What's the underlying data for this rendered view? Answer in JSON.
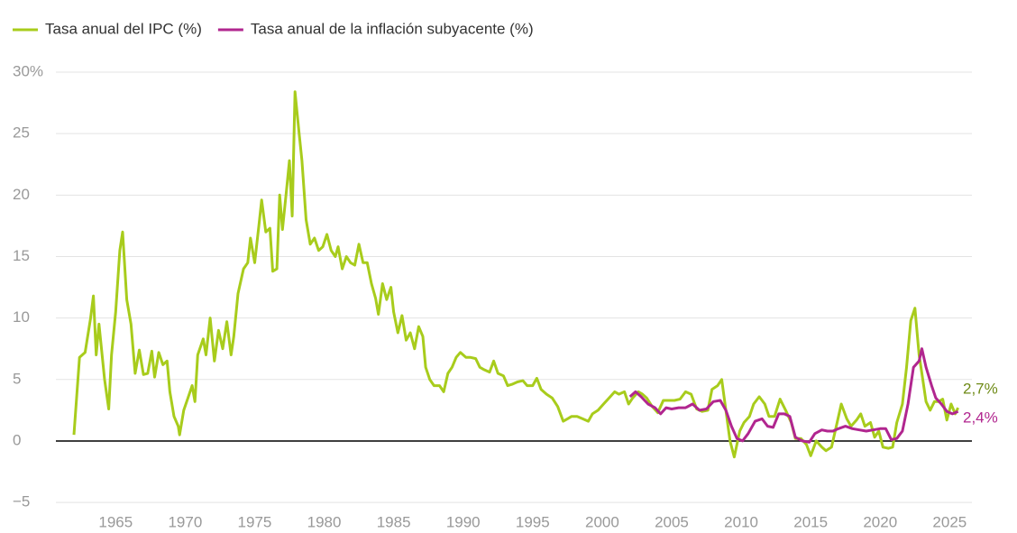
{
  "chart_data": {
    "type": "line",
    "series": [
      {
        "name": "Tasa anual del IPC (%)",
        "color": "#a8cc1c",
        "x": [
          1962.0,
          1962.4,
          1962.8,
          1963.2,
          1963.4,
          1963.6,
          1963.8,
          1964.2,
          1964.5,
          1964.7,
          1965.0,
          1965.3,
          1965.5,
          1965.8,
          1966.1,
          1966.4,
          1966.7,
          1967.0,
          1967.3,
          1967.6,
          1967.8,
          1968.1,
          1968.4,
          1968.7,
          1968.9,
          1969.2,
          1969.5,
          1969.6,
          1969.9,
          1970.2,
          1970.5,
          1970.7,
          1970.9,
          1971.3,
          1971.5,
          1971.8,
          1972.1,
          1972.4,
          1972.7,
          1973.0,
          1973.3,
          1973.5,
          1973.8,
          1974.2,
          1974.5,
          1974.7,
          1975.0,
          1975.3,
          1975.5,
          1975.8,
          1976.1,
          1976.3,
          1976.6,
          1976.8,
          1977.0,
          1977.3,
          1977.5,
          1977.7,
          1977.9,
          1978.2,
          1978.4,
          1978.7,
          1979.0,
          1979.3,
          1979.6,
          1979.9,
          1980.2,
          1980.5,
          1980.8,
          1981.0,
          1981.3,
          1981.6,
          1981.9,
          1982.2,
          1982.5,
          1982.8,
          1983.1,
          1983.4,
          1983.7,
          1983.9,
          1984.2,
          1984.5,
          1984.8,
          1985.0,
          1985.3,
          1985.6,
          1985.9,
          1986.2,
          1986.5,
          1986.8,
          1987.1,
          1987.3,
          1987.6,
          1987.9,
          1988.3,
          1988.6,
          1988.9,
          1989.2,
          1989.5,
          1989.8,
          1990.2,
          1990.5,
          1990.9,
          1991.2,
          1991.5,
          1991.9,
          1992.2,
          1992.5,
          1992.9,
          1993.2,
          1993.5,
          1993.9,
          1994.3,
          1994.6,
          1995.0,
          1995.3,
          1995.6,
          1996.0,
          1996.4,
          1996.8,
          1997.2,
          1997.5,
          1997.8,
          1998.2,
          1998.6,
          1999.0,
          1999.3,
          1999.7,
          2000.1,
          2000.5,
          2000.9,
          2001.2,
          2001.6,
          2001.9,
          2002.2,
          2002.6,
          2002.9,
          2003.2,
          2003.6,
          2004.0,
          2004.4,
          2004.8,
          2005.2,
          2005.6,
          2006.0,
          2006.4,
          2006.8,
          2007.2,
          2007.6,
          2007.9,
          2008.3,
          2008.6,
          2008.9,
          2009.2,
          2009.5,
          2009.9,
          2010.2,
          2010.6,
          2010.9,
          2011.3,
          2011.7,
          2012.0,
          2012.4,
          2012.8,
          2013.2,
          2013.6,
          2013.9,
          2014.3,
          2014.7,
          2015.0,
          2015.4,
          2015.8,
          2016.1,
          2016.5,
          2016.9,
          2017.2,
          2017.6,
          2017.9,
          2018.3,
          2018.6,
          2018.9,
          2019.3,
          2019.6,
          2019.9,
          2020.2,
          2020.6,
          2020.9,
          2021.2,
          2021.6,
          2021.9,
          2022.2,
          2022.5,
          2022.8,
          2023.0,
          2023.3,
          2023.6,
          2023.9,
          2024.2,
          2024.5,
          2024.8,
          2025.1,
          2025.4,
          2025.6
        ],
        "values": [
          0.5,
          6.8,
          7.2,
          10,
          11.8,
          7,
          9.5,
          5,
          2.6,
          7,
          10.5,
          15.5,
          17,
          11.5,
          9.5,
          5.5,
          7.4,
          5.4,
          5.5,
          7.3,
          5.2,
          7.2,
          6.2,
          6.5,
          4,
          2,
          1.2,
          0.5,
          2.5,
          3.5,
          4.5,
          3.2,
          7,
          8.3,
          7,
          10,
          6.5,
          9,
          7.5,
          9.7,
          7,
          8.5,
          12,
          14,
          14.5,
          16.5,
          14.5,
          17.5,
          19.6,
          17,
          17.3,
          13.8,
          14,
          20,
          17.2,
          20.5,
          22.8,
          18.3,
          28.4,
          25,
          22.8,
          18,
          16,
          16.5,
          15.5,
          15.8,
          16.8,
          15.5,
          15,
          15.8,
          14,
          15,
          14.5,
          14.3,
          16,
          14.5,
          14.5,
          12.8,
          11.6,
          10.3,
          12.8,
          11.5,
          12.5,
          10.5,
          8.8,
          10.2,
          8.2,
          8.8,
          7.5,
          9.3,
          8.5,
          6,
          5,
          4.5,
          4.5,
          4,
          5.5,
          6,
          6.8,
          7.2,
          6.8,
          6.8,
          6.7,
          6,
          5.8,
          5.6,
          6.5,
          5.5,
          5.3,
          4.5,
          4.6,
          4.8,
          4.9,
          4.5,
          4.5,
          5.1,
          4.2,
          3.8,
          3.5,
          2.8,
          1.6,
          1.8,
          2,
          2,
          1.8,
          1.6,
          2.2,
          2.5,
          3,
          3.5,
          4,
          3.8,
          4,
          3,
          3.5,
          4,
          3.8,
          3.5,
          2.8,
          2.3,
          3.3,
          3.3,
          3.3,
          3.4,
          4,
          3.8,
          2.6,
          2.4,
          2.5,
          4.2,
          4.5,
          5,
          2.5,
          0,
          -1.3,
          0.8,
          1.5,
          2,
          3,
          3.6,
          3,
          2,
          2,
          3.4,
          2.5,
          1.5,
          0.2,
          0.2,
          -0.3,
          -1.2,
          0,
          -0.5,
          -0.8,
          -0.5,
          1.5,
          3,
          1.8,
          1.2,
          1.7,
          2.2,
          1.2,
          1.5,
          0.3,
          0.8,
          -0.5,
          -0.6,
          -0.5,
          1.5,
          3,
          6,
          9.8,
          10.8,
          7,
          5.5,
          3.2,
          2.5,
          3.2,
          3.2,
          3.4,
          1.7,
          3,
          2.2,
          2.7
        ]
      },
      {
        "name": "Tasa anual de la inflación subyacente (%)",
        "color": "#b1268f",
        "x": [
          2002.0,
          2002.4,
          2002.8,
          2003.3,
          2003.8,
          2004.2,
          2004.6,
          2005.0,
          2005.5,
          2006.0,
          2006.5,
          2007.0,
          2007.5,
          2008.0,
          2008.5,
          2008.9,
          2009.3,
          2009.7,
          2010.1,
          2010.5,
          2011.0,
          2011.5,
          2011.9,
          2012.3,
          2012.7,
          2013.1,
          2013.5,
          2013.9,
          2014.4,
          2014.9,
          2015.3,
          2015.8,
          2016.2,
          2016.6,
          2017.0,
          2017.5,
          2018.0,
          2018.5,
          2019.0,
          2019.5,
          2020.0,
          2020.4,
          2020.8,
          2021.2,
          2021.6,
          2022.0,
          2022.4,
          2022.8,
          2023.0,
          2023.3,
          2023.7,
          2024.0,
          2024.4,
          2024.8,
          2025.2,
          2025.6
        ],
        "values": [
          3.6,
          4,
          3.6,
          3,
          2.7,
          2.2,
          2.7,
          2.6,
          2.7,
          2.7,
          3,
          2.5,
          2.6,
          3.2,
          3.3,
          2.5,
          1.2,
          0.2,
          0,
          0.6,
          1.6,
          1.8,
          1.2,
          1.1,
          2.2,
          2.2,
          2,
          0.3,
          0,
          -0.1,
          0.6,
          0.9,
          0.8,
          0.8,
          1,
          1.2,
          1,
          0.9,
          0.8,
          0.9,
          1,
          1,
          0.1,
          0.2,
          0.8,
          3,
          6,
          6.5,
          7.5,
          6,
          4.5,
          3.5,
          3,
          2.4,
          2.2,
          2.4
        ]
      }
    ],
    "annotations": [
      {
        "text": "2,7%",
        "value": 2.7,
        "color": "#6e8a16"
      },
      {
        "text": "2,4%",
        "value": 2.4,
        "color": "#b1268f"
      }
    ],
    "xlim": [
      1960.7,
      2026.6
    ],
    "xticks": [
      1965,
      1970,
      1975,
      1980,
      1985,
      1990,
      1995,
      2000,
      2005,
      2010,
      2015,
      2020,
      2025
    ],
    "ylim": [
      -5.8,
      30
    ],
    "yticks": [
      {
        "value": 30,
        "label": "30%"
      },
      25,
      20,
      15,
      10,
      5,
      0,
      {
        "value": -5,
        "label": "−5"
      }
    ],
    "grid": true
  }
}
